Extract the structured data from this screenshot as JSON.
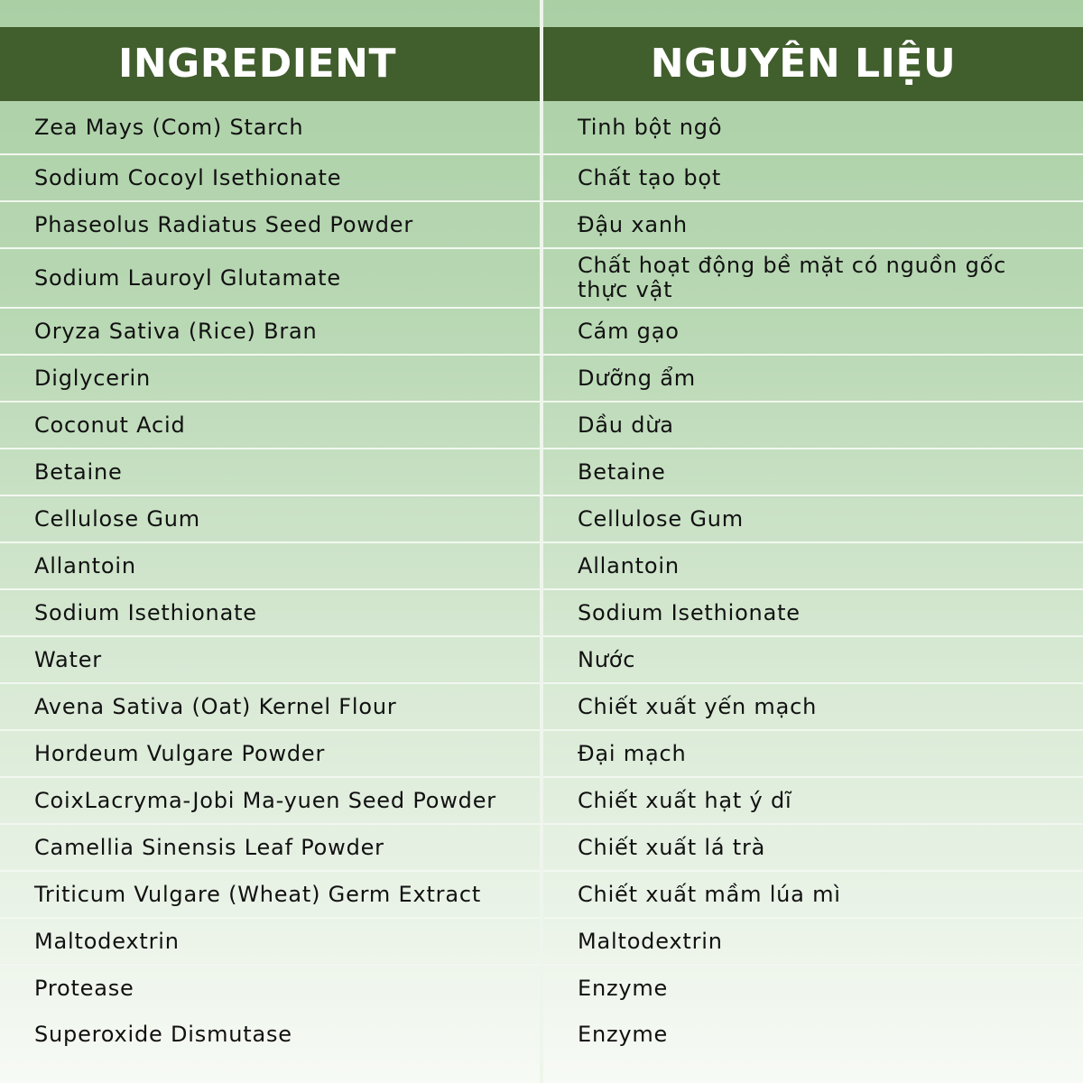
{
  "header": {
    "ingredient": "INGREDIENT",
    "vietnamese": "NGUYÊN LIỆU"
  },
  "colors": {
    "header_bg": "#415e2d",
    "header_text": "#ffffff",
    "row_bg_top": "#aacfa5",
    "row_bg_bottom": "#f7faf5"
  },
  "rows": [
    {
      "ingredient": "Zea Mays (Com) Starch",
      "vietnamese": "Tinh bột ngô"
    },
    {
      "ingredient": "Sodium Cocoyl Isethionate",
      "vietnamese": "Chất tạo bọt"
    },
    {
      "ingredient": "Phaseolus Radiatus Seed Powder",
      "vietnamese": "Đậu xanh"
    },
    {
      "ingredient": "Sodium Lauroyl Glutamate",
      "vietnamese": "Chất hoạt động bề mặt có nguồn gốc thực vật"
    },
    {
      "ingredient": "Oryza Sativa (Rice) Bran",
      "vietnamese": "Cám gạo"
    },
    {
      "ingredient": "Diglycerin",
      "vietnamese": "Dưỡng ẩm"
    },
    {
      "ingredient": "Coconut Acid",
      "vietnamese": "Dầu dừa"
    },
    {
      "ingredient": "Betaine",
      "vietnamese": "Betaine"
    },
    {
      "ingredient": "Cellulose Gum",
      "vietnamese": "Cellulose Gum"
    },
    {
      "ingredient": "Allantoin",
      "vietnamese": "Allantoin"
    },
    {
      "ingredient": "Sodium Isethionate",
      "vietnamese": "Sodium Isethionate"
    },
    {
      "ingredient": "Water",
      "vietnamese": "Nước"
    },
    {
      "ingredient": "Avena Sativa (Oat) Kernel Flour",
      "vietnamese": "Chiết xuất yến mạch"
    },
    {
      "ingredient": "Hordeum Vulgare Powder",
      "vietnamese": "Đại mạch"
    },
    {
      "ingredient": "CoixLacryma-Jobi Ma-yuen Seed Powder",
      "vietnamese": "Chiết xuất hạt ý dĩ"
    },
    {
      "ingredient": "Camellia Sinensis Leaf Powder",
      "vietnamese": "Chiết xuất lá trà"
    },
    {
      "ingredient": "Triticum Vulgare (Wheat) Germ Extract",
      "vietnamese": "Chiết xuất mầm lúa mì"
    },
    {
      "ingredient": "Maltodextrin",
      "vietnamese": "Maltodextrin"
    },
    {
      "ingredient": "Protease",
      "vietnamese": "Enzyme"
    },
    {
      "ingredient": "Superoxide Dismutase",
      "vietnamese": "Enzyme"
    }
  ]
}
